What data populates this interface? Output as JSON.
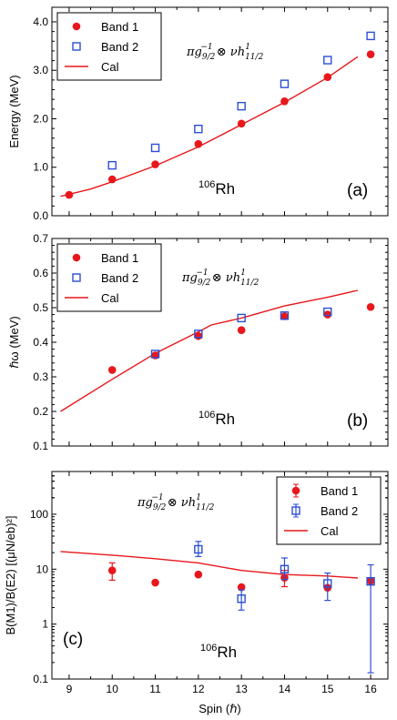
{
  "colors": {
    "band1": "#e8171b",
    "band2": "#2b4ed6",
    "cal": "#e8171b",
    "axis": "#000000"
  },
  "shared": {
    "xlabel": "Spin (ℏ)",
    "xticks": [
      "9",
      "10",
      "11",
      "12",
      "13",
      "14",
      "15",
      "16"
    ],
    "xlim": [
      8.6,
      16.4
    ],
    "legend_labels": {
      "band1": "Band 1",
      "band2": "Band 2",
      "cal": "Cal"
    },
    "config_label": "πg9/2−1 ⊗ νh11/21",
    "nucleus_sup": "106",
    "nucleus": "Rh"
  },
  "chart_data": [
    {
      "type": "scatter",
      "panel_label": "(a)",
      "ylabel": "Energy (MeV)",
      "ylim": [
        0,
        4.3
      ],
      "yticks": [
        "0.0",
        "1.0",
        "2.0",
        "3.0",
        "4.0"
      ],
      "yscale": "linear",
      "legend_placement": "top-left",
      "series": [
        {
          "name": "Band 1",
          "marker": "circle",
          "x": [
            9,
            10,
            11,
            12,
            13,
            14,
            15,
            16
          ],
          "y": [
            0.43,
            0.75,
            1.06,
            1.48,
            1.9,
            2.36,
            2.86,
            3.33
          ]
        },
        {
          "name": "Band 2",
          "marker": "square",
          "x": [
            10,
            11,
            12,
            13,
            14,
            15,
            16
          ],
          "y": [
            1.04,
            1.4,
            1.79,
            2.26,
            2.72,
            3.21,
            3.71
          ]
        },
        {
          "name": "Cal",
          "marker": "line",
          "x": [
            8.8,
            9.5,
            10,
            11,
            12,
            13,
            14,
            15,
            15.7
          ],
          "y": [
            0.4,
            0.55,
            0.7,
            1.03,
            1.42,
            1.88,
            2.34,
            2.85,
            3.28
          ]
        }
      ]
    },
    {
      "type": "scatter",
      "panel_label": "(b)",
      "ylabel": "ℏω (MeV)",
      "ylim": [
        0.1,
        0.7
      ],
      "yticks": [
        "0.1",
        "0.2",
        "0.3",
        "0.4",
        "0.5",
        "0.6",
        "0.7"
      ],
      "yscale": "linear",
      "legend_placement": "top-left",
      "series": [
        {
          "name": "Band 1",
          "marker": "circle",
          "x": [
            10,
            11,
            12,
            13,
            14,
            15,
            16
          ],
          "y": [
            0.32,
            0.362,
            0.418,
            0.435,
            0.475,
            0.48,
            0.502
          ]
        },
        {
          "name": "Band 2",
          "marker": "square",
          "x": [
            11,
            12,
            13,
            14,
            15
          ],
          "y": [
            0.366,
            0.424,
            0.47,
            0.477,
            0.488
          ]
        },
        {
          "name": "Cal",
          "marker": "line",
          "x": [
            8.8,
            10,
            11,
            12,
            12.3,
            13,
            14,
            15,
            15.7
          ],
          "y": [
            0.2,
            0.293,
            0.368,
            0.43,
            0.45,
            0.47,
            0.505,
            0.53,
            0.55
          ]
        }
      ]
    },
    {
      "type": "scatter",
      "panel_label": "(c)",
      "ylabel": "B(M1)/B(E2) [(μN/eb)²]",
      "ylim": [
        0.1,
        600
      ],
      "yticks": [
        "0.1",
        "1",
        "10",
        "100"
      ],
      "ytick_values": [
        0.1,
        1,
        10,
        100
      ],
      "yscale": "log",
      "legend_placement": "top-right",
      "series": [
        {
          "name": "Band 1",
          "marker": "circle",
          "x": [
            10,
            11,
            12,
            13,
            14,
            15,
            16
          ],
          "y": [
            9.5,
            5.7,
            8.0,
            4.7,
            7.0,
            4.6,
            6.1
          ],
          "err_low": [
            6.3,
            5.7,
            8.0,
            4.7,
            4.8,
            4.6,
            6.1
          ],
          "err_high": [
            13.0,
            5.7,
            8.0,
            4.7,
            9.5,
            4.6,
            6.1
          ]
        },
        {
          "name": "Band 2",
          "marker": "square",
          "x": [
            12,
            13,
            14,
            15,
            16
          ],
          "y": [
            23,
            2.9,
            10,
            5.5,
            6.0
          ],
          "err_low": [
            17,
            1.8,
            6.5,
            2.7,
            0.13
          ],
          "err_high": [
            32,
            4.2,
            16,
            8.5,
            12
          ]
        },
        {
          "name": "Cal",
          "marker": "line",
          "x": [
            8.8,
            10,
            11,
            12,
            13,
            14,
            15,
            15.7
          ],
          "y": [
            21,
            18,
            15.5,
            13,
            9.5,
            8.0,
            7.5,
            6.9
          ]
        }
      ]
    }
  ]
}
